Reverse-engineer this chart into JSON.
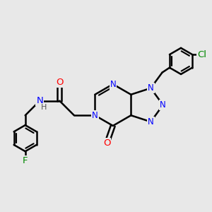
{
  "bg_color": "#e8e8e8",
  "bond_color": "#000000",
  "bond_width": 1.8,
  "atom_colors": {
    "N": "#0000ff",
    "O": "#ff0000",
    "F": "#008800",
    "Cl": "#008800",
    "H": "#555555"
  },
  "font_size": 8.5,
  "fig_size": [
    3.0,
    3.0
  ],
  "dpi": 100
}
